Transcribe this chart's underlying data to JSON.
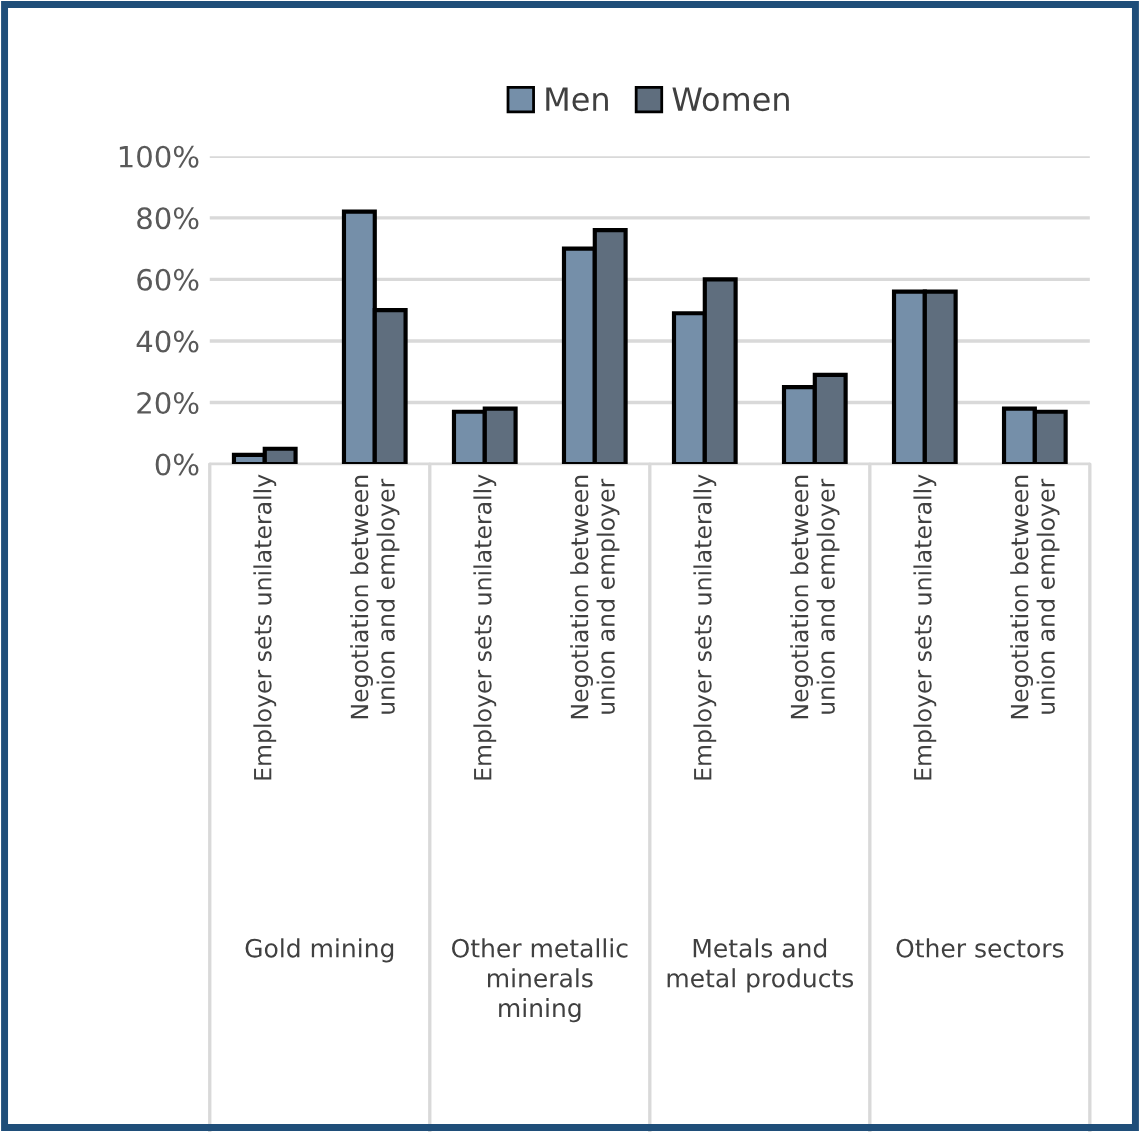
{
  "chart_data": {
    "type": "bar",
    "categories": [
      "Employer sets unilaterally",
      "Negotiation between union and employer",
      "Employer sets unilaterally",
      "Negotiation between union and employer",
      "Employer sets unilaterally",
      "Negotiation between union and employer",
      "Employer sets unilaterally",
      "Negotiation between union and employer"
    ],
    "series": [
      {
        "name": "Men",
        "color": "#758fa9",
        "values": [
          3,
          82,
          17,
          70,
          49,
          25,
          56,
          18
        ]
      },
      {
        "name": "Women",
        "color": "#5f6e7e",
        "values": [
          5,
          50,
          18,
          76,
          60,
          29,
          56,
          17
        ]
      }
    ],
    "annotations": [
      "Gold mining",
      "Other metallic minerals mining",
      "Metals and metal products",
      "Other sectors"
    ],
    "ylim": [
      0,
      100
    ],
    "yticks": [
      {
        "value": 0,
        "label": "0%"
      },
      {
        "value": 20,
        "label": "20%"
      },
      {
        "value": 40,
        "label": "40%"
      },
      {
        "value": 60,
        "label": "60%"
      },
      {
        "value": 80,
        "label": "80%"
      },
      {
        "value": 100,
        "label": "100%"
      }
    ],
    "grid": "y",
    "legend": "top"
  }
}
